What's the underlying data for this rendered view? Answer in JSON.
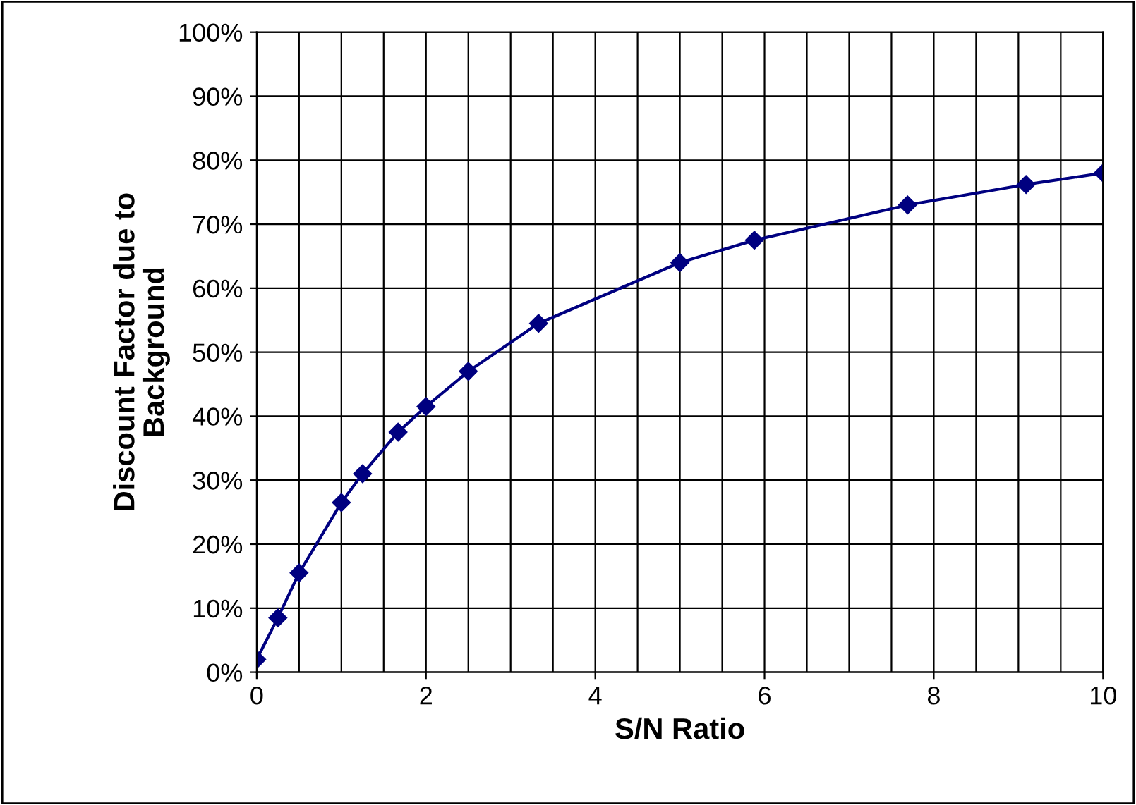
{
  "chart_data": {
    "type": "line",
    "xlabel": "S/N Ratio",
    "ylabel": "Discount Factor due to\nBackground",
    "x": [
      0,
      0.25,
      0.5,
      1,
      1.25,
      1.67,
      2,
      2.5,
      3.33,
      5,
      5.88,
      7.69,
      9.09,
      10
    ],
    "series": [
      {
        "color": "#000080",
        "values": [
          2,
          8.5,
          15.5,
          26.5,
          31,
          37.5,
          41.5,
          47,
          54.5,
          64,
          67.5,
          73,
          76.2,
          78
        ]
      }
    ],
    "xlim": [
      0,
      10
    ],
    "xticks": [
      0,
      2,
      4,
      6,
      8,
      10
    ],
    "ylim": [
      0,
      100
    ],
    "yticks": [
      {
        "value": 0,
        "label": "0%"
      },
      {
        "value": 10,
        "label": "10%"
      },
      {
        "value": 20,
        "label": "20%"
      },
      {
        "value": 30,
        "label": "30%"
      },
      {
        "value": 40,
        "label": "40%"
      },
      {
        "value": 50,
        "label": "50%"
      },
      {
        "value": 60,
        "label": "60%"
      },
      {
        "value": 70,
        "label": "70%"
      },
      {
        "value": 80,
        "label": "80%"
      },
      {
        "value": 90,
        "label": "90%"
      },
      {
        "value": 100,
        "label": "100%"
      }
    ],
    "grid": true,
    "marker": "diamond",
    "line_style": "solid",
    "legend": false
  }
}
